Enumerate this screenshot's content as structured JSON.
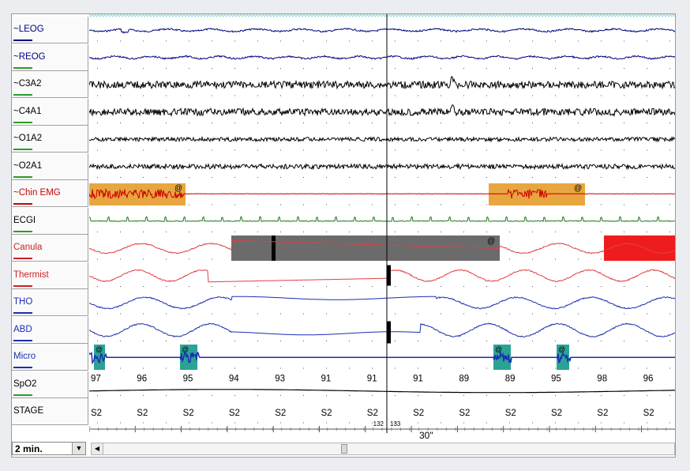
{
  "channels": [
    {
      "label": "~LEOG",
      "color": "#000080",
      "bar": "#000080"
    },
    {
      "label": "~REOG",
      "color": "#000080",
      "bar": "#2a9d2a"
    },
    {
      "label": "~C3A2",
      "color": "#000000",
      "bar": "#2a9d2a"
    },
    {
      "label": "~C4A1",
      "color": "#000000",
      "bar": "#2a9d2a"
    },
    {
      "label": "~O1A2",
      "color": "#000000",
      "bar": "#2a9d2a"
    },
    {
      "label": "~O2A1",
      "color": "#000000",
      "bar": "#2a9d2a"
    },
    {
      "label": "~Chin EMG",
      "color": "#cc0000",
      "bar": "#cc0000"
    },
    {
      "label": "ECGI",
      "color": "#000000",
      "bar": "#2a9d2a"
    },
    {
      "label": "Canula",
      "color": "#cc2222",
      "bar": "#cc2222"
    },
    {
      "label": "Thermist",
      "color": "#cc2222",
      "bar": "#cc2222"
    },
    {
      "label": "THO",
      "color": "#1a2fb0",
      "bar": "#1a2fb0"
    },
    {
      "label": "ABD",
      "color": "#1a2fb0",
      "bar": "#1a2fb0"
    },
    {
      "label": "Micro",
      "color": "#1a2fb0",
      "bar": "#1a2fb0"
    },
    {
      "label": "SpO2",
      "color": "#000000",
      "bar": "#2a9d2a"
    },
    {
      "label": "STAGE",
      "color": "#000000",
      "bar": ""
    }
  ],
  "spo2_values": [
    "97",
    "96",
    "95",
    "94",
    "93",
    "91",
    "91",
    "91",
    "89",
    "89",
    "95",
    "98",
    "96"
  ],
  "stage_labels": [
    "S2",
    "S2",
    "S2",
    "S2",
    "S2",
    "S2",
    "S2",
    "S2",
    "S2",
    "S2",
    "S2",
    "S2",
    "S2"
  ],
  "epoch_left": "132",
  "epoch_right": "133",
  "event_marker": "@",
  "time_label": "30\"",
  "zoom": {
    "value": "2 min."
  },
  "colors": {
    "emg_event": "#e8a640",
    "apnea_block": "#6b6b6b",
    "desat_block": "#ee1c1c",
    "micro_event": "#2aa396",
    "trace_blue": "#1a2fb0",
    "trace_red": "#e04040",
    "trace_green": "#1e7a1e"
  }
}
